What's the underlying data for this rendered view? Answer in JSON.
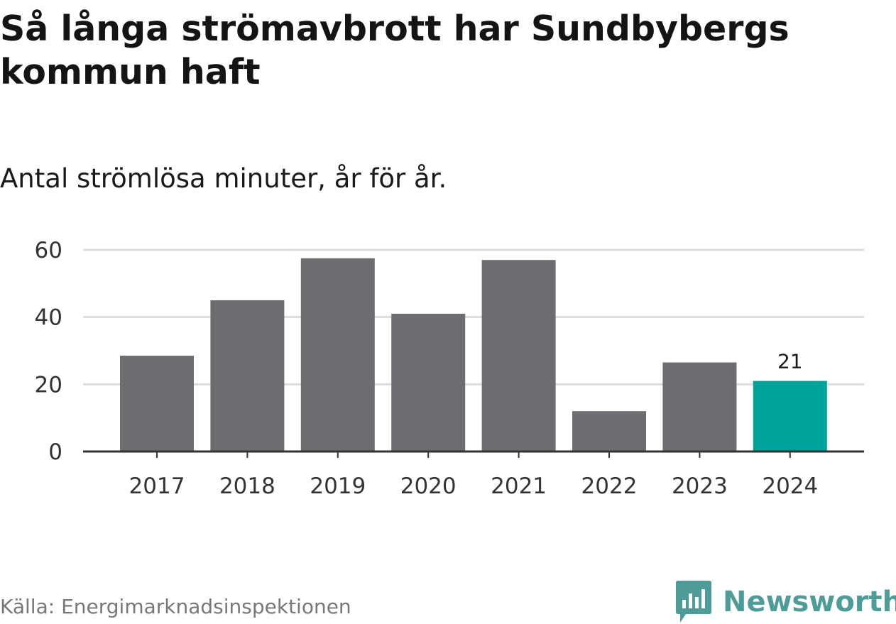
{
  "title": "Så långa strömavbrott har Sundbybergs kommun haft",
  "subtitle": "Antal strömlösa minuter, år för år.",
  "source": "Källa: Energimarknadsinspektionen",
  "brand": {
    "name": "Newsworthy",
    "icon": "bar-chart-speech-bubble-icon",
    "color": "#4e9c98"
  },
  "colors": {
    "bar": "#6d6c71",
    "highlight": "#00a39a",
    "grid": "#dddddd",
    "axis": "#333333"
  },
  "chart_data": {
    "type": "bar",
    "title": "Så långa strömavbrott har Sundbybergs kommun haft",
    "subtitle": "Antal strömlösa minuter, år för år.",
    "xlabel": "",
    "ylabel": "",
    "categories": [
      "2017",
      "2018",
      "2019",
      "2020",
      "2021",
      "2022",
      "2023",
      "2024"
    ],
    "values": [
      28.5,
      45,
      57.5,
      41,
      57,
      12,
      26.5,
      21
    ],
    "highlight_index": 7,
    "data_labels": [
      {
        "index": 7,
        "text": "21"
      }
    ],
    "ylim": [
      0,
      60
    ],
    "yticks": [
      0,
      20,
      40,
      60
    ],
    "grid": true
  }
}
